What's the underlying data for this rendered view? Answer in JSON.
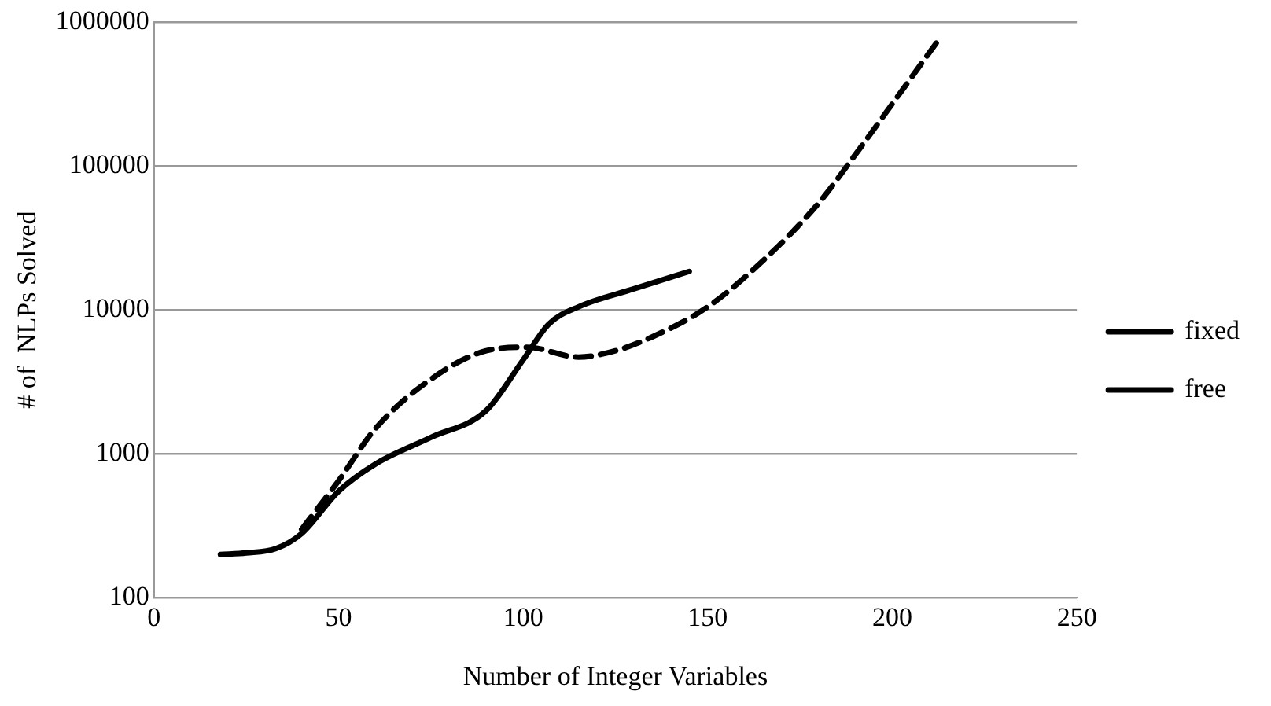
{
  "chart_data": {
    "type": "line",
    "xlabel": "Number of Integer Variables",
    "ylabel": "# of  NLPs Solved",
    "log": "y",
    "grid": "y",
    "legend": "right",
    "marker": "none",
    "xlim": [
      0,
      250
    ],
    "xticks": [
      0,
      50,
      100,
      150,
      200,
      250
    ],
    "ylim": [
      100,
      1000000
    ],
    "yticks": [
      100,
      1000,
      10000,
      100000,
      1000000
    ],
    "series": [
      {
        "name": "fixed",
        "color": "#000000",
        "line_style": "solid",
        "x": [
          18,
          25,
          33,
          40,
          50,
          60,
          75,
          90,
          100,
          107,
          115,
          130,
          145
        ],
        "values": [
          200,
          205,
          220,
          280,
          550,
          850,
          1300,
          2000,
          4500,
          8000,
          10500,
          14000,
          18500
        ]
      },
      {
        "name": "free",
        "color": "#000000",
        "line_style": "dashed",
        "x": [
          40,
          50,
          60,
          75,
          90,
          101,
          115,
          125,
          135,
          150,
          165,
          180,
          190,
          200,
          213
        ],
        "values": [
          300,
          650,
          1500,
          3300,
          5200,
          5500,
          4700,
          5200,
          6500,
          10500,
          22000,
          55000,
          120000,
          270000,
          780000
        ]
      }
    ]
  }
}
